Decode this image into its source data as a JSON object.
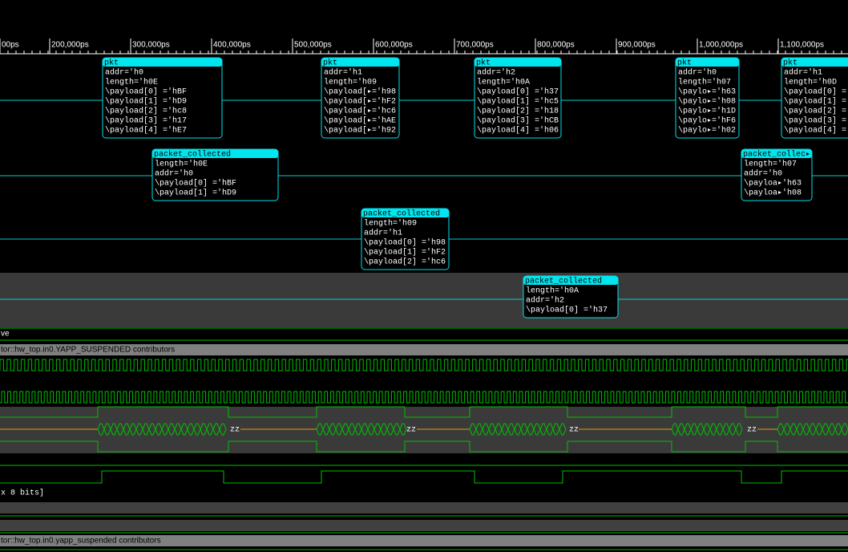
{
  "timeline": {
    "ticks": [
      "00ps",
      "200,000ps",
      "300,000ps",
      "400,000ps",
      "500,000ps",
      "600,000ps",
      "700,000ps",
      "800,000ps",
      "900,000ps",
      "1,000,000ps",
      "1,100,000ps"
    ]
  },
  "transactions": [
    {
      "title": "pkt",
      "lines": [
        "addr='h0",
        "length='h0E",
        "\\payload[0] ='hBF",
        "\\payload[1] ='hD9",
        "\\payload[2] ='hc8",
        "\\payload[3] ='h17",
        "\\payload[4] ='hE7"
      ]
    },
    {
      "title": "pkt",
      "lines": [
        "addr='h1",
        "length='h09",
        "\\payload[▸='h98",
        "\\payload[▸='hF2",
        "\\payload[▸='hc6",
        "\\payload[▸='hAE",
        "\\payload[▸='h92"
      ]
    },
    {
      "title": "pkt",
      "lines": [
        "addr='h2",
        "length='h0A",
        "\\payload[0] ='h37",
        "\\payload[1] ='hc5",
        "\\payload[2] ='h18",
        "\\payload[3] ='hCB",
        "\\payload[4] ='h06"
      ]
    },
    {
      "title": "pkt",
      "lines": [
        "addr='h0",
        "length='h07",
        "\\paylo▸='h63",
        "\\paylo▸='h08",
        "\\paylo▸='h1D",
        "\\paylo▸='hF6",
        "\\paylo▸='h02"
      ]
    },
    {
      "title": "pkt",
      "lines": [
        "addr='h1",
        "length='h0D",
        "\\payload[0] =",
        "\\payload[1] =",
        "\\payload[2] =",
        "\\payload[3] =",
        "\\payload[4] ="
      ]
    },
    {
      "title": "packet_collected",
      "lines": [
        "length='h0E",
        "addr='h0",
        "\\payload[0] ='hBF",
        "\\payload[1] ='hD9"
      ]
    },
    {
      "title": "packet_collec▸",
      "lines": [
        "length='h07",
        "addr='h0",
        "\\payloa▸'h63",
        "\\payloa▸'h08"
      ]
    },
    {
      "title": "packet_collected",
      "lines": [
        "length='h09",
        "addr='h1",
        "\\payload[0] ='h98",
        "\\payload[1] ='hF2",
        "\\payload[2] ='hc6"
      ]
    },
    {
      "title": "packet_collected",
      "lines": [
        "length='h0A",
        "addr='h2",
        "\\payload[0] ='h37"
      ]
    }
  ],
  "rows": {
    "label_ve": "ve",
    "contributors_1": "tor::hw_top.in0.YAPP_SUSPENDED contributors",
    "bits": "x 8 bits]",
    "contributors_2": "tor::hw_top.in0.yapp_suspended contributors"
  },
  "bus": {
    "zz": [
      "zz",
      "zz",
      "zz",
      "zz"
    ]
  }
}
